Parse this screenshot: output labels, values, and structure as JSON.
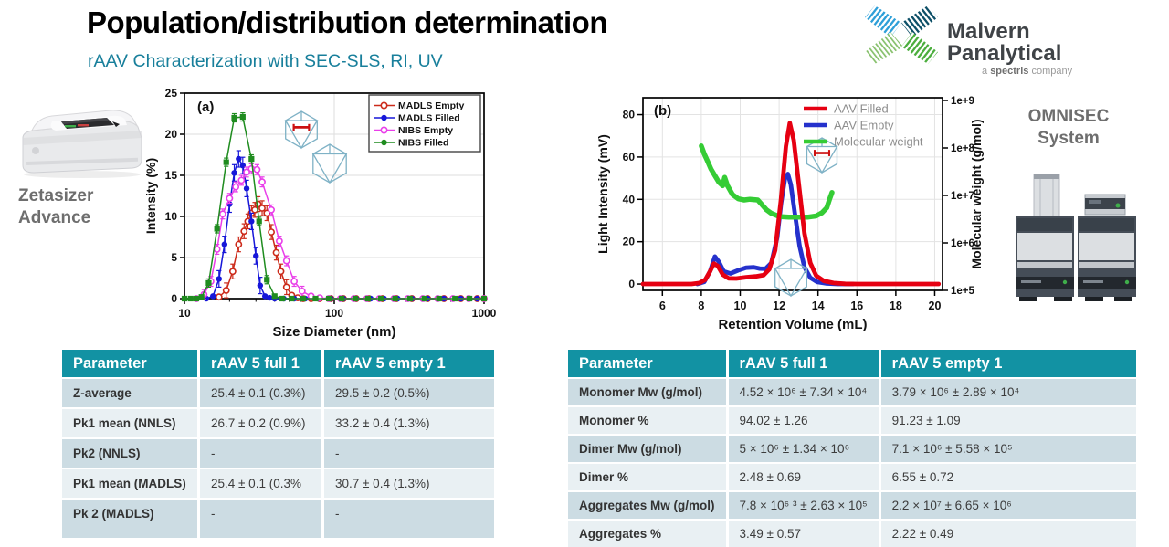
{
  "slide": {
    "title": "Population/distribution determination",
    "subtitle": "rAAV Characterization with SEC-SLS, RI, UV"
  },
  "logo": {
    "name_line1": "Malvern",
    "name_line2": "Panalytical",
    "tagline_prefix": "a ",
    "tagline_brand": "spectris",
    "tagline_suffix": " company"
  },
  "instruments": {
    "zetasizer": {
      "label_line1": "Zetasizer",
      "label_line2": "Advance"
    },
    "omnisec": {
      "label_line1": "OMNISEC",
      "label_line2": "System"
    }
  },
  "colors": {
    "table_header_teal": "#1292a3",
    "table_row_dark": "#ccdce3",
    "table_row_light": "#e9f0f3",
    "subtitle_teal": "#187f9b",
    "capsid_icon_blue": "#7fb2c6",
    "logo_blue": "#2e9fd8",
    "logo_dark_teal": "#0e5068",
    "logo_light_green": "#86c06b",
    "logo_green": "#4cae3e"
  },
  "chart_data": [
    {
      "type": "line",
      "panel_label": "(a)",
      "xlabel": "Size Diameter (nm)",
      "ylabel": "Intensity (%)",
      "xscale": "log",
      "xlim": [
        10,
        1000
      ],
      "ylim": [
        0,
        25
      ],
      "xticks": [
        10,
        100,
        1000
      ],
      "yticks": [
        0,
        5,
        10,
        15,
        20,
        25
      ],
      "grid": true,
      "legend_position": "top-right",
      "series": [
        {
          "name": "MADLS Empty",
          "color": "#cc2a1a",
          "marker": "open-circle",
          "err": 0.9,
          "points": [
            [
              17,
              0.2
            ],
            [
              19,
              1.0
            ],
            [
              21,
              3.3
            ],
            [
              23,
              6.6
            ],
            [
              25,
              8.2
            ],
            [
              26.5,
              9.4
            ],
            [
              28,
              10.4
            ],
            [
              29.5,
              10.8
            ],
            [
              31,
              11.5
            ],
            [
              33,
              11.0
            ],
            [
              35.5,
              10.4
            ],
            [
              38,
              8.1
            ],
            [
              41,
              5.6
            ],
            [
              44,
              3.3
            ],
            [
              48,
              1.4
            ],
            [
              52,
              0.4
            ],
            [
              57,
              0.1
            ],
            [
              62,
              0
            ],
            [
              70,
              0
            ],
            [
              80,
              0
            ],
            [
              95,
              0
            ],
            [
              115,
              0
            ],
            [
              140,
              0
            ],
            [
              170,
              0
            ],
            [
              210,
              0
            ],
            [
              260,
              0
            ],
            [
              330,
              0
            ],
            [
              420,
              0
            ],
            [
              540,
              0
            ],
            [
              700,
              0
            ],
            [
              900,
              0
            ],
            [
              1000,
              0
            ]
          ]
        },
        {
          "name": "MADLS Filled",
          "color": "#1717d9",
          "marker": "filled-circle",
          "err": 1.0,
          "points": [
            [
              14,
              0
            ],
            [
              15.5,
              0.3
            ],
            [
              17,
              2.4
            ],
            [
              18.5,
              6.6
            ],
            [
              20,
              11.5
            ],
            [
              21.5,
              15.3
            ],
            [
              23,
              17.0
            ],
            [
              24.5,
              16.2
            ],
            [
              26,
              13.4
            ],
            [
              28,
              9.4
            ],
            [
              30,
              5.2
            ],
            [
              32,
              1.6
            ],
            [
              34.5,
              0.3
            ],
            [
              37,
              0.1
            ],
            [
              40,
              0
            ],
            [
              46,
              0
            ],
            [
              54,
              0
            ],
            [
              64,
              0
            ],
            [
              78,
              0
            ],
            [
              95,
              0
            ],
            [
              115,
              0
            ],
            [
              140,
              0
            ],
            [
              175,
              0
            ],
            [
              215,
              0
            ],
            [
              265,
              0
            ],
            [
              330,
              0
            ],
            [
              420,
              0
            ],
            [
              540,
              0
            ],
            [
              700,
              0
            ],
            [
              900,
              0
            ],
            [
              1000,
              0
            ]
          ]
        },
        {
          "name": "NIBS Empty",
          "color": "#e93ee9",
          "marker": "open-circle",
          "err": 0.6,
          "points": [
            [
              12,
              0
            ],
            [
              13.5,
              0.5
            ],
            [
              15,
              2.1
            ],
            [
              16.5,
              6.0
            ],
            [
              18,
              10.3
            ],
            [
              20,
              12.2
            ],
            [
              22,
              13.6
            ],
            [
              24,
              14.4
            ],
            [
              26,
              15.4
            ],
            [
              28,
              15.8
            ],
            [
              30.5,
              15.7
            ],
            [
              33,
              14.2
            ],
            [
              38,
              10.8
            ],
            [
              43,
              7.0
            ],
            [
              48,
              4.6
            ],
            [
              54,
              2.1
            ],
            [
              61,
              0.9
            ],
            [
              70,
              0.3
            ],
            [
              80,
              0.1
            ],
            [
              92,
              0
            ],
            [
              110,
              0
            ],
            [
              135,
              0
            ],
            [
              165,
              0
            ],
            [
              200,
              0
            ],
            [
              250,
              0
            ],
            [
              310,
              0
            ],
            [
              390,
              0
            ],
            [
              490,
              0
            ],
            [
              620,
              0
            ],
            [
              790,
              0
            ],
            [
              1000,
              0
            ]
          ]
        },
        {
          "name": "NIBS Filled",
          "color": "#1f8c1f",
          "marker": "filled-square",
          "err": 0.5,
          "points": [
            [
              10,
              0
            ],
            [
              11,
              0
            ],
            [
              12,
              0
            ],
            [
              13,
              0.2
            ],
            [
              14.5,
              1.9
            ],
            [
              16.5,
              8.5
            ],
            [
              19,
              16.6
            ],
            [
              21.5,
              22.0
            ],
            [
              24.5,
              22.1
            ],
            [
              28,
              17.0
            ],
            [
              31.5,
              9.4
            ],
            [
              35.5,
              2.3
            ],
            [
              40,
              0.3
            ],
            [
              45,
              0
            ],
            [
              52,
              0
            ],
            [
              62,
              0
            ],
            [
              75,
              0
            ],
            [
              92,
              0
            ],
            [
              112,
              0
            ],
            [
              138,
              0
            ],
            [
              168,
              0
            ],
            [
              205,
              0
            ],
            [
              255,
              0
            ],
            [
              320,
              0
            ],
            [
              400,
              0
            ],
            [
              500,
              0
            ],
            [
              640,
              0
            ],
            [
              800,
              0
            ],
            [
              1000,
              0
            ]
          ]
        }
      ]
    },
    {
      "type": "line",
      "panel_label": "(b)",
      "xlabel": "Retention Volume (mL)",
      "ylabel_left": "Light Intensity (mV)",
      "ylabel_right": "Molecular weight (g/mol)",
      "xlim": [
        5,
        20.4
      ],
      "ylim_left": [
        0,
        80
      ],
      "ylim_right_log": [
        100000,
        1000000000
      ],
      "xticks": [
        6,
        8,
        10,
        12,
        14,
        16,
        18,
        20
      ],
      "yticks_left": [
        0,
        20,
        40,
        60,
        80
      ],
      "yticks_right": [
        "1e+5",
        "1e+6",
        "1e+7",
        "1e+8",
        "1e+9"
      ],
      "grid": true,
      "legend_position": "top-right",
      "series": [
        {
          "name": "AAV Filled",
          "axis": "left",
          "color": "#e60012",
          "points": [
            [
              5,
              0
            ],
            [
              7.5,
              0
            ],
            [
              7.9,
              0.5
            ],
            [
              8.2,
              2
            ],
            [
              8.45,
              6
            ],
            [
              8.65,
              9.7
            ],
            [
              8.85,
              8.5
            ],
            [
              9.1,
              4.5
            ],
            [
              9.4,
              2.7
            ],
            [
              9.8,
              2.6
            ],
            [
              10.3,
              3.2
            ],
            [
              10.8,
              3.6
            ],
            [
              11.2,
              4.2
            ],
            [
              11.5,
              7
            ],
            [
              11.8,
              16
            ],
            [
              12.1,
              40
            ],
            [
              12.35,
              65
            ],
            [
              12.55,
              76
            ],
            [
              12.75,
              68
            ],
            [
              13.0,
              48
            ],
            [
              13.3,
              24
            ],
            [
              13.6,
              10
            ],
            [
              13.9,
              4
            ],
            [
              14.3,
              1.5
            ],
            [
              14.8,
              0.5
            ],
            [
              15.4,
              0.1
            ],
            [
              16,
              0
            ],
            [
              20.2,
              0
            ]
          ]
        },
        {
          "name": "AAV Empty",
          "axis": "left",
          "color": "#2531cc",
          "points": [
            [
              7.8,
              0
            ],
            [
              8.15,
              1
            ],
            [
              8.45,
              6
            ],
            [
              8.7,
              13
            ],
            [
              8.9,
              10.5
            ],
            [
              9.15,
              6
            ],
            [
              9.5,
              5
            ],
            [
              9.9,
              6.5
            ],
            [
              10.3,
              7.7
            ],
            [
              10.7,
              7.9
            ],
            [
              11.0,
              7.3
            ],
            [
              11.3,
              7.2
            ],
            [
              11.6,
              10
            ],
            [
              11.9,
              22
            ],
            [
              12.1,
              38
            ],
            [
              12.3,
              50
            ],
            [
              12.45,
              52
            ],
            [
              12.6,
              47
            ],
            [
              12.8,
              34
            ],
            [
              13.05,
              18
            ],
            [
              13.3,
              8
            ],
            [
              13.6,
              3
            ],
            [
              13.95,
              1
            ],
            [
              14.4,
              0.3
            ],
            [
              15,
              0
            ],
            [
              15.8,
              0
            ]
          ]
        },
        {
          "name": "Molecular weight",
          "axis": "right",
          "color": "#35cc35",
          "points": [
            [
              8.0,
              110000000.0
            ],
            [
              8.15,
              75000000.0
            ],
            [
              8.3,
              55000000.0
            ],
            [
              8.5,
              36000000.0
            ],
            [
              8.7,
              26000000.0
            ],
            [
              8.9,
              19000000.0
            ],
            [
              9.1,
              16000000.0
            ],
            [
              9.2,
              24000000.0
            ],
            [
              9.35,
              16000000.0
            ],
            [
              9.6,
              10500000.0
            ],
            [
              9.9,
              8500000.0
            ],
            [
              10.2,
              8000000.0
            ],
            [
              10.5,
              8300000.0
            ],
            [
              10.9,
              8000000.0
            ],
            [
              11.1,
              6500000.0
            ],
            [
              11.35,
              5000000.0
            ],
            [
              11.6,
              4200000.0
            ],
            [
              12.0,
              3600000.0
            ],
            [
              12.5,
              3500000.0
            ],
            [
              13.0,
              3500000.0
            ],
            [
              13.5,
              3500000.0
            ],
            [
              13.9,
              3700000.0
            ],
            [
              14.2,
              4300000.0
            ],
            [
              14.45,
              5500000.0
            ],
            [
              14.6,
              8500000.0
            ],
            [
              14.72,
              11500000.0
            ]
          ]
        }
      ]
    }
  ],
  "tables": {
    "dls": {
      "headers": [
        "Parameter",
        "rAAV 5 full 1",
        "rAAV 5 empty 1"
      ],
      "rows": [
        [
          "Z-average",
          "25.4 ± 0.1 (0.3%)",
          "29.5 ± 0.2 (0.5%)"
        ],
        [
          "Pk1 mean (NNLS)",
          "26.7 ± 0.2 (0.9%)",
          "33.2 ± 0.4 (1.3%)"
        ],
        [
          "Pk2 (NNLS)",
          "-",
          "-"
        ],
        [
          "Pk1 mean (MADLS)",
          "25.4 ± 0.1 (0.3%",
          "30.7 ± 0.4 (1.3%)"
        ],
        [
          "Pk 2 (MADLS)",
          "-",
          "-"
        ]
      ]
    },
    "sec": {
      "headers": [
        "Parameter",
        "rAAV 5 full 1",
        "rAAV 5 empty 1"
      ],
      "rows": [
        [
          "Monomer Mw (g/mol)",
          "4.52 × 10⁶ ± 7.34 × 10⁴",
          "3.79 × 10⁶ ± 2.89 × 10⁴"
        ],
        [
          "Monomer %",
          "94.02 ± 1.26",
          "91.23 ± 1.09"
        ],
        [
          "Dimer Mw (g/mol)",
          "5 × 10⁶ ± 1.34 × 10⁶",
          "7.1 × 10⁶ ± 5.58 × 10⁵"
        ],
        [
          "Dimer %",
          "2.48 ± 0.69",
          "6.55 ± 0.72"
        ],
        [
          "Aggregates Mw (g/mol)",
          "7.8 × 10⁶ ³ ± 2.63 × 10⁵",
          "2.2 × 10⁷ ± 6.65 × 10⁶"
        ],
        [
          "Aggregates %",
          "3.49 ± 0.57",
          "2.22 ± 0.49"
        ]
      ]
    }
  }
}
